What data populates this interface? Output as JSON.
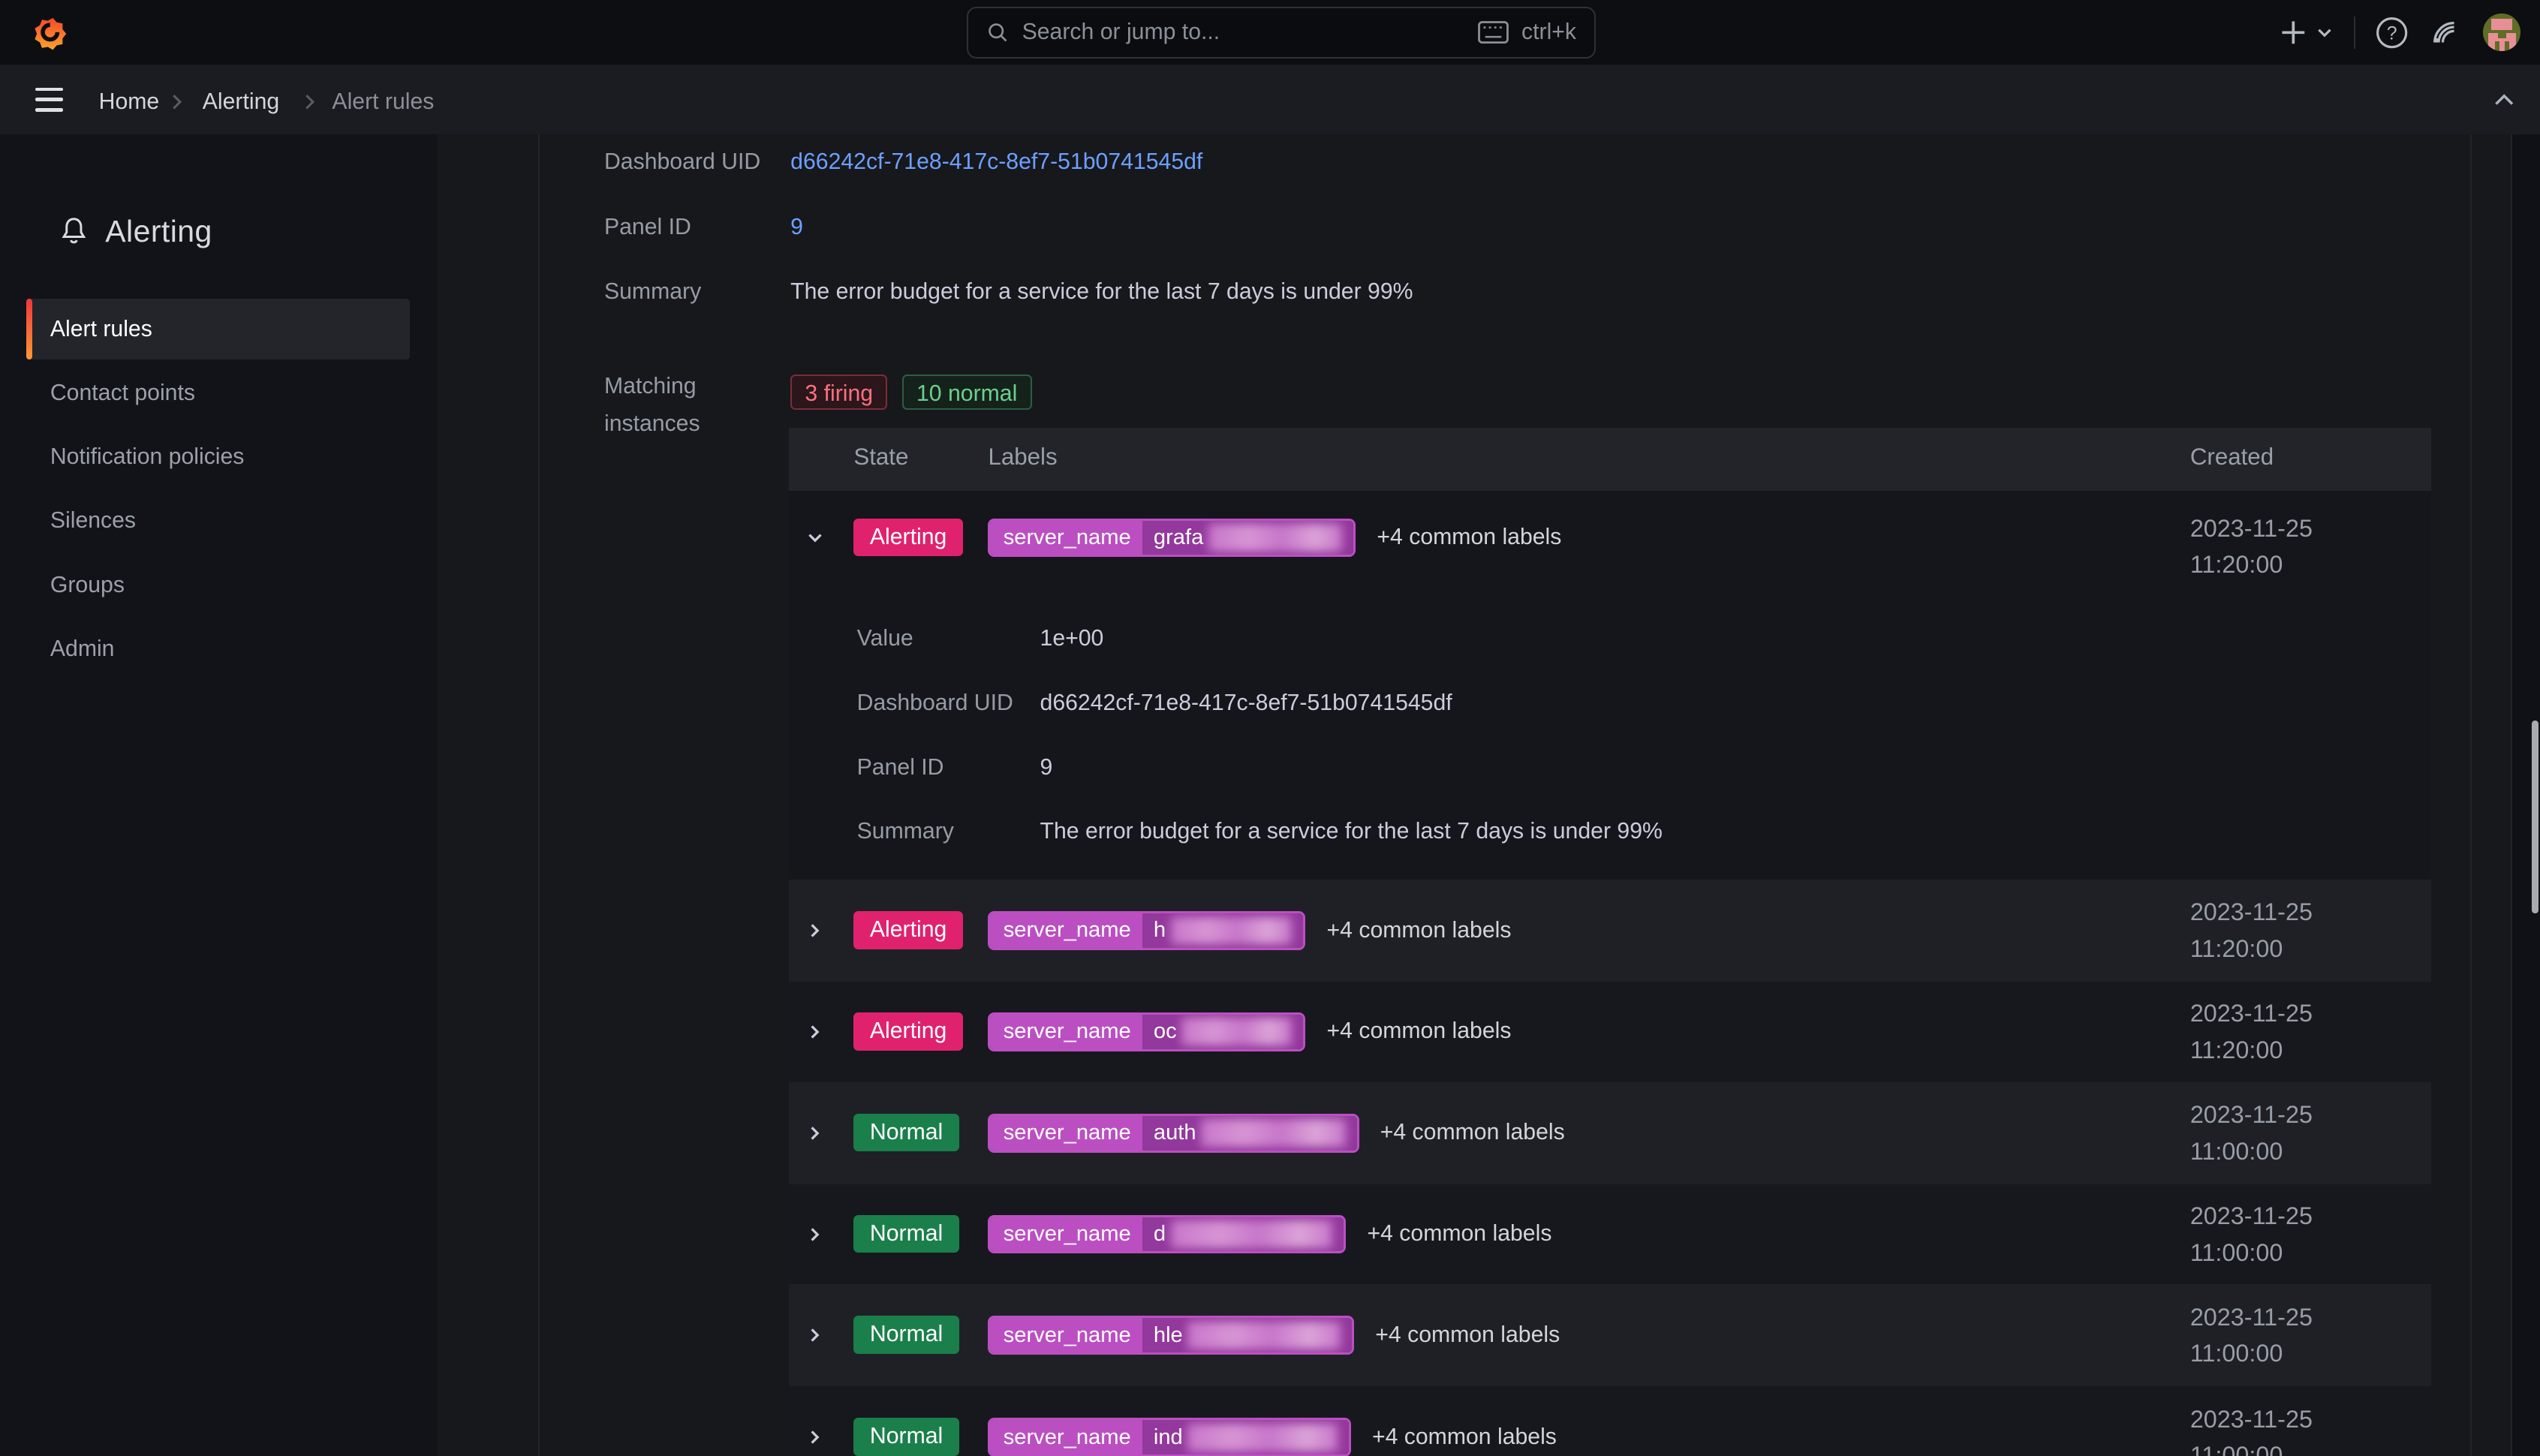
{
  "topbar": {
    "search_placeholder": "Search or jump to...",
    "shortcut": "ctrl+k"
  },
  "breadcrumb": {
    "items": [
      "Home",
      "Alerting",
      "Alert rules"
    ]
  },
  "sidebar": {
    "title": "Alerting",
    "items": [
      {
        "label": "Alert rules",
        "active": true
      },
      {
        "label": "Contact points",
        "active": false
      },
      {
        "label": "Notification policies",
        "active": false
      },
      {
        "label": "Silences",
        "active": false
      },
      {
        "label": "Groups",
        "active": false
      },
      {
        "label": "Admin",
        "active": false
      }
    ]
  },
  "details": {
    "rows": [
      {
        "label": "Dashboard UID",
        "value": "d66242cf-71e8-417c-8ef7-51b0741545df",
        "type": "link"
      },
      {
        "label": "Panel ID",
        "value": "9",
        "type": "link"
      },
      {
        "label": "Summary",
        "value": "The error budget for a service for the last 7 days is under 99%",
        "type": "text"
      }
    ],
    "matching_label": "Matching instances",
    "badges": [
      {
        "text": "3 firing",
        "kind": "firing"
      },
      {
        "text": "10 normal",
        "kind": "normal"
      }
    ]
  },
  "instances_table": {
    "headers": [
      "State",
      "Labels",
      "Created"
    ],
    "label_key": "server_name",
    "common_labels_text": "+4 common labels",
    "rows": [
      {
        "state": "Alerting",
        "value_text": "grafa",
        "pill_width": 227,
        "expanded": true,
        "date": "2023-11-25",
        "time": "11:20:00"
      },
      {
        "state": "Alerting",
        "value_text": "h",
        "pill_width": 196,
        "expanded": false,
        "date": "2023-11-25",
        "time": "11:20:00"
      },
      {
        "state": "Alerting",
        "value_text": "oc",
        "pill_width": 196,
        "expanded": false,
        "date": "2023-11-25",
        "time": "11:20:00"
      },
      {
        "state": "Normal",
        "value_text": "auth",
        "pill_width": 229,
        "expanded": false,
        "date": "2023-11-25",
        "time": "11:00:00"
      },
      {
        "state": "Normal",
        "value_text": "d",
        "pill_width": 221,
        "expanded": false,
        "date": "2023-11-25",
        "time": "11:00:00"
      },
      {
        "state": "Normal",
        "value_text": "hle",
        "pill_width": 226,
        "expanded": false,
        "date": "2023-11-25",
        "time": "11:00:00"
      },
      {
        "state": "Normal",
        "value_text": "ind",
        "pill_width": 224,
        "expanded": false,
        "date": "2023-11-25",
        "time": "11:00:00"
      }
    ],
    "expanded_detail": [
      {
        "label": "Value",
        "value": "1e+00",
        "type": "text"
      },
      {
        "label": "Dashboard UID",
        "value": "d66242cf-71e8-417c-8ef7-51b0741545df",
        "type": "link"
      },
      {
        "label": "Panel ID",
        "value": "9",
        "type": "link"
      },
      {
        "label": "Summary",
        "value": "The error budget for a service for the last 7 days is under 99%",
        "type": "text"
      }
    ]
  },
  "colors": {
    "alerting_badge": "#e0226e",
    "normal_badge": "#1a7f4b",
    "firing_badge_text": "#ff707f",
    "firing_badge_border": "#7c2d38",
    "firing_badge_bg": "#2b161b",
    "normal_badge_text": "#6ccf8e",
    "normal_badge_border": "#2d5e42",
    "normal_badge_bg": "#15221b",
    "link": "#6e9fff",
    "pill_key_bg": "#bb4fc2",
    "pill_value_bg": "#93389c",
    "row_dark": "#17181d",
    "row_light": "#1e2026",
    "row_expanded": "#15161b"
  }
}
